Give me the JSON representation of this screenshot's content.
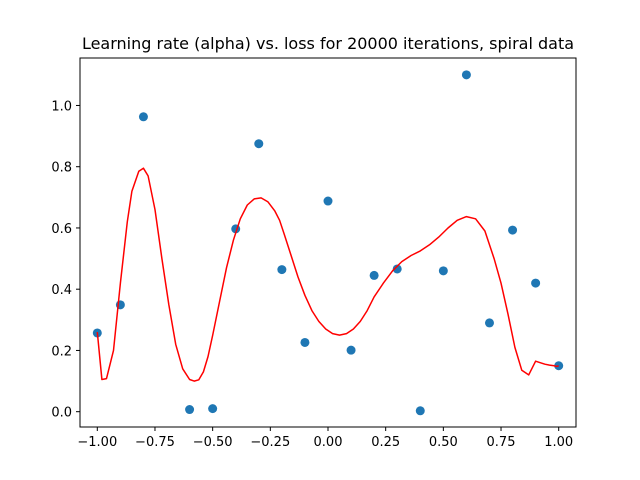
{
  "chart_data": {
    "type": "scatter",
    "title": "Learning rate (alpha) vs. loss for 20000 iterations, spiral data",
    "xlabel": "",
    "ylabel": "",
    "xlim": [
      -1.075,
      1.075
    ],
    "ylim": [
      -0.05,
      1.155
    ],
    "x_ticks": [
      -1.0,
      -0.75,
      -0.5,
      -0.25,
      0.0,
      0.25,
      0.5,
      0.75,
      1.0
    ],
    "x_tick_labels": [
      "−1.00",
      "−0.75",
      "−0.50",
      "−0.25",
      "0.00",
      "0.25",
      "0.50",
      "0.75",
      "1.00"
    ],
    "y_ticks": [
      0.0,
      0.2,
      0.4,
      0.6,
      0.8,
      1.0
    ],
    "y_tick_labels": [
      "0.0",
      "0.2",
      "0.4",
      "0.6",
      "0.8",
      "1.0"
    ],
    "grid": false,
    "colors": {
      "points": "#1f77b4",
      "curve": "#ff0000"
    },
    "series": [
      {
        "type": "scatter",
        "x": [
          -1.0,
          -0.9,
          -0.8,
          -0.6,
          -0.5,
          -0.4,
          -0.3,
          -0.2,
          -0.1,
          0.0,
          0.1,
          0.2,
          0.3,
          0.4,
          0.5,
          0.6,
          0.7,
          0.8,
          0.9,
          1.0
        ],
        "y": [
          0.257,
          0.349,
          0.963,
          0.007,
          0.01,
          0.597,
          0.875,
          0.464,
          0.226,
          0.688,
          0.201,
          0.445,
          0.466,
          0.003,
          0.46,
          1.1,
          0.29,
          0.593,
          0.42,
          0.15
        ]
      },
      {
        "type": "line",
        "x": [
          -1.0,
          -0.98,
          -0.96,
          -0.93,
          -0.9,
          -0.87,
          -0.85,
          -0.82,
          -0.8,
          -0.78,
          -0.75,
          -0.72,
          -0.69,
          -0.66,
          -0.63,
          -0.6,
          -0.58,
          -0.56,
          -0.54,
          -0.52,
          -0.5,
          -0.47,
          -0.44,
          -0.41,
          -0.38,
          -0.35,
          -0.32,
          -0.29,
          -0.26,
          -0.23,
          -0.21,
          -0.19,
          -0.16,
          -0.13,
          -0.1,
          -0.07,
          -0.04,
          -0.01,
          0.02,
          0.05,
          0.08,
          0.11,
          0.14,
          0.17,
          0.2,
          0.24,
          0.28,
          0.32,
          0.36,
          0.4,
          0.44,
          0.48,
          0.52,
          0.56,
          0.6,
          0.64,
          0.68,
          0.72,
          0.75,
          0.78,
          0.81,
          0.84,
          0.87,
          0.9,
          0.92,
          0.94,
          0.96,
          0.98,
          0.99,
          1.0
        ],
        "y": [
          0.26,
          0.105,
          0.108,
          0.2,
          0.42,
          0.62,
          0.72,
          0.785,
          0.795,
          0.77,
          0.66,
          0.5,
          0.35,
          0.22,
          0.14,
          0.105,
          0.1,
          0.104,
          0.13,
          0.18,
          0.25,
          0.36,
          0.47,
          0.56,
          0.63,
          0.675,
          0.695,
          0.698,
          0.685,
          0.655,
          0.625,
          0.58,
          0.51,
          0.44,
          0.38,
          0.33,
          0.295,
          0.27,
          0.255,
          0.25,
          0.255,
          0.27,
          0.295,
          0.33,
          0.375,
          0.42,
          0.46,
          0.49,
          0.51,
          0.525,
          0.545,
          0.57,
          0.6,
          0.625,
          0.637,
          0.63,
          0.59,
          0.5,
          0.42,
          0.32,
          0.21,
          0.135,
          0.12,
          0.165,
          0.16,
          0.155,
          0.152,
          0.15,
          0.148,
          0.15
        ]
      }
    ]
  }
}
